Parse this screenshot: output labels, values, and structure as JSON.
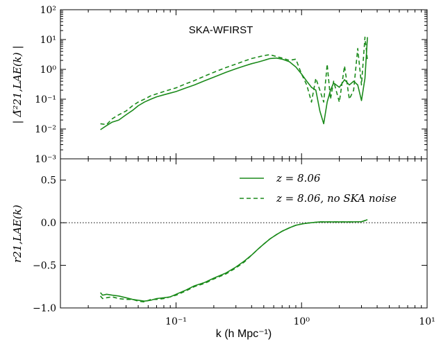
{
  "chart_data": [
    {
      "type": "line",
      "panel": "top",
      "annotation": "SKA-WFIRST",
      "ylabel": "| Δ̃²21,LAE(k) |",
      "xscale": "log",
      "yscale": "log",
      "xlim": [
        0.012,
        10
      ],
      "ylim": [
        0.001,
        100
      ],
      "yticks": [
        "10⁻³",
        "10⁻²",
        "10⁻¹",
        "10⁰",
        "10¹",
        "10²"
      ],
      "color": "#1a8a1a",
      "series": [
        {
          "style": "solid",
          "x": [
            0.025,
            0.028,
            0.031,
            0.035,
            0.04,
            0.045,
            0.05,
            0.056,
            0.063,
            0.07,
            0.08,
            0.09,
            0.1,
            0.12,
            0.14,
            0.17,
            0.2,
            0.25,
            0.3,
            0.35,
            0.4,
            0.45,
            0.5,
            0.56,
            0.63,
            0.7,
            0.8,
            0.9,
            1.0,
            1.1,
            1.2,
            1.3,
            1.4,
            1.5,
            1.6,
            1.7,
            1.8,
            2.0,
            2.2,
            2.4,
            2.6,
            2.8,
            3.0,
            3.2,
            3.35
          ],
          "y": [
            0.0095,
            0.013,
            0.017,
            0.02,
            0.03,
            0.042,
            0.06,
            0.08,
            0.1,
            0.12,
            0.14,
            0.16,
            0.18,
            0.24,
            0.3,
            0.42,
            0.55,
            0.8,
            1.05,
            1.3,
            1.55,
            1.75,
            2.0,
            2.3,
            2.4,
            2.2,
            1.8,
            1.2,
            0.7,
            0.4,
            0.25,
            0.2,
            0.04,
            0.015,
            0.08,
            0.2,
            0.35,
            0.25,
            0.45,
            0.3,
            0.4,
            0.3,
            0.09,
            0.5,
            12.0
          ]
        },
        {
          "style": "dashed",
          "x": [
            0.025,
            0.028,
            0.031,
            0.035,
            0.04,
            0.045,
            0.05,
            0.056,
            0.063,
            0.07,
            0.08,
            0.09,
            0.1,
            0.12,
            0.14,
            0.17,
            0.2,
            0.25,
            0.3,
            0.35,
            0.4,
            0.45,
            0.5,
            0.56,
            0.63,
            0.7,
            0.8,
            0.9,
            1.0,
            1.1,
            1.2,
            1.3,
            1.4,
            1.5,
            1.6,
            1.7,
            1.8,
            2.0,
            2.2,
            2.4,
            2.6,
            2.8,
            3.0,
            3.2,
            3.35
          ],
          "y": [
            0.015,
            0.014,
            0.022,
            0.03,
            0.04,
            0.06,
            0.08,
            0.1,
            0.13,
            0.15,
            0.18,
            0.21,
            0.24,
            0.33,
            0.42,
            0.6,
            0.8,
            1.15,
            1.5,
            1.9,
            2.3,
            2.6,
            2.9,
            3.1,
            2.7,
            2.4,
            2.0,
            2.2,
            0.7,
            0.3,
            0.08,
            0.5,
            0.2,
            0.08,
            1.5,
            0.1,
            0.4,
            0.08,
            1.3,
            0.1,
            0.2,
            5.0,
            0.3,
            12.0,
            2.0
          ]
        }
      ]
    },
    {
      "type": "line",
      "panel": "bottom",
      "xlabel": "k (h Mpc⁻¹)",
      "ylabel": "r21,LAE(k)",
      "xscale": "log",
      "xlim": [
        0.012,
        10
      ],
      "ylim": [
        -1.0,
        0.75
      ],
      "xticks": [
        "10⁻¹",
        "10⁰",
        "10¹"
      ],
      "yticks": [
        "−1.0",
        "−0.5",
        "0.0",
        "0.5"
      ],
      "reference_line_y": 0.0,
      "legend": {
        "placement": "top-right",
        "entries": [
          {
            "style": "solid",
            "label": "z = 8.06"
          },
          {
            "style": "dashed",
            "label": "z = 8.06, no SKA noise"
          }
        ]
      },
      "series": [
        {
          "style": "solid",
          "x": [
            0.025,
            0.026,
            0.028,
            0.031,
            0.035,
            0.04,
            0.045,
            0.05,
            0.056,
            0.063,
            0.07,
            0.08,
            0.09,
            0.1,
            0.12,
            0.14,
            0.17,
            0.2,
            0.25,
            0.3,
            0.35,
            0.4,
            0.45,
            0.5,
            0.56,
            0.63,
            0.7,
            0.8,
            0.9,
            1.0,
            1.1,
            1.2,
            1.4,
            1.6,
            2.0,
            2.5,
            3.0,
            3.35
          ],
          "y": [
            -0.82,
            -0.85,
            -0.84,
            -0.85,
            -0.86,
            -0.88,
            -0.9,
            -0.91,
            -0.92,
            -0.91,
            -0.89,
            -0.88,
            -0.87,
            -0.84,
            -0.79,
            -0.74,
            -0.7,
            -0.65,
            -0.59,
            -0.52,
            -0.45,
            -0.38,
            -0.31,
            -0.25,
            -0.19,
            -0.14,
            -0.1,
            -0.06,
            -0.03,
            -0.015,
            -0.005,
            0.0,
            0.01,
            0.01,
            0.01,
            0.01,
            0.012,
            0.035
          ]
        },
        {
          "style": "dashed",
          "x": [
            0.025,
            0.026,
            0.028,
            0.031,
            0.035,
            0.04,
            0.045,
            0.05,
            0.056,
            0.063,
            0.07,
            0.08,
            0.09,
            0.1,
            0.12,
            0.14,
            0.17,
            0.2,
            0.25,
            0.3,
            0.35,
            0.4,
            0.45,
            0.5,
            0.56,
            0.63,
            0.7,
            0.8,
            0.9,
            1.0,
            1.1,
            1.2,
            1.4,
            1.6,
            2.0,
            2.5,
            3.0,
            3.35
          ],
          "y": [
            -0.86,
            -0.89,
            -0.88,
            -0.87,
            -0.89,
            -0.9,
            -0.9,
            -0.92,
            -0.93,
            -0.9,
            -0.9,
            -0.89,
            -0.87,
            -0.85,
            -0.8,
            -0.75,
            -0.71,
            -0.66,
            -0.6,
            -0.53,
            -0.46,
            -0.38,
            -0.31,
            -0.25,
            -0.19,
            -0.14,
            -0.1,
            -0.06,
            -0.03,
            -0.015,
            -0.005,
            0.0,
            0.01,
            0.01,
            0.01,
            0.01,
            0.012,
            0.035
          ]
        }
      ]
    }
  ]
}
